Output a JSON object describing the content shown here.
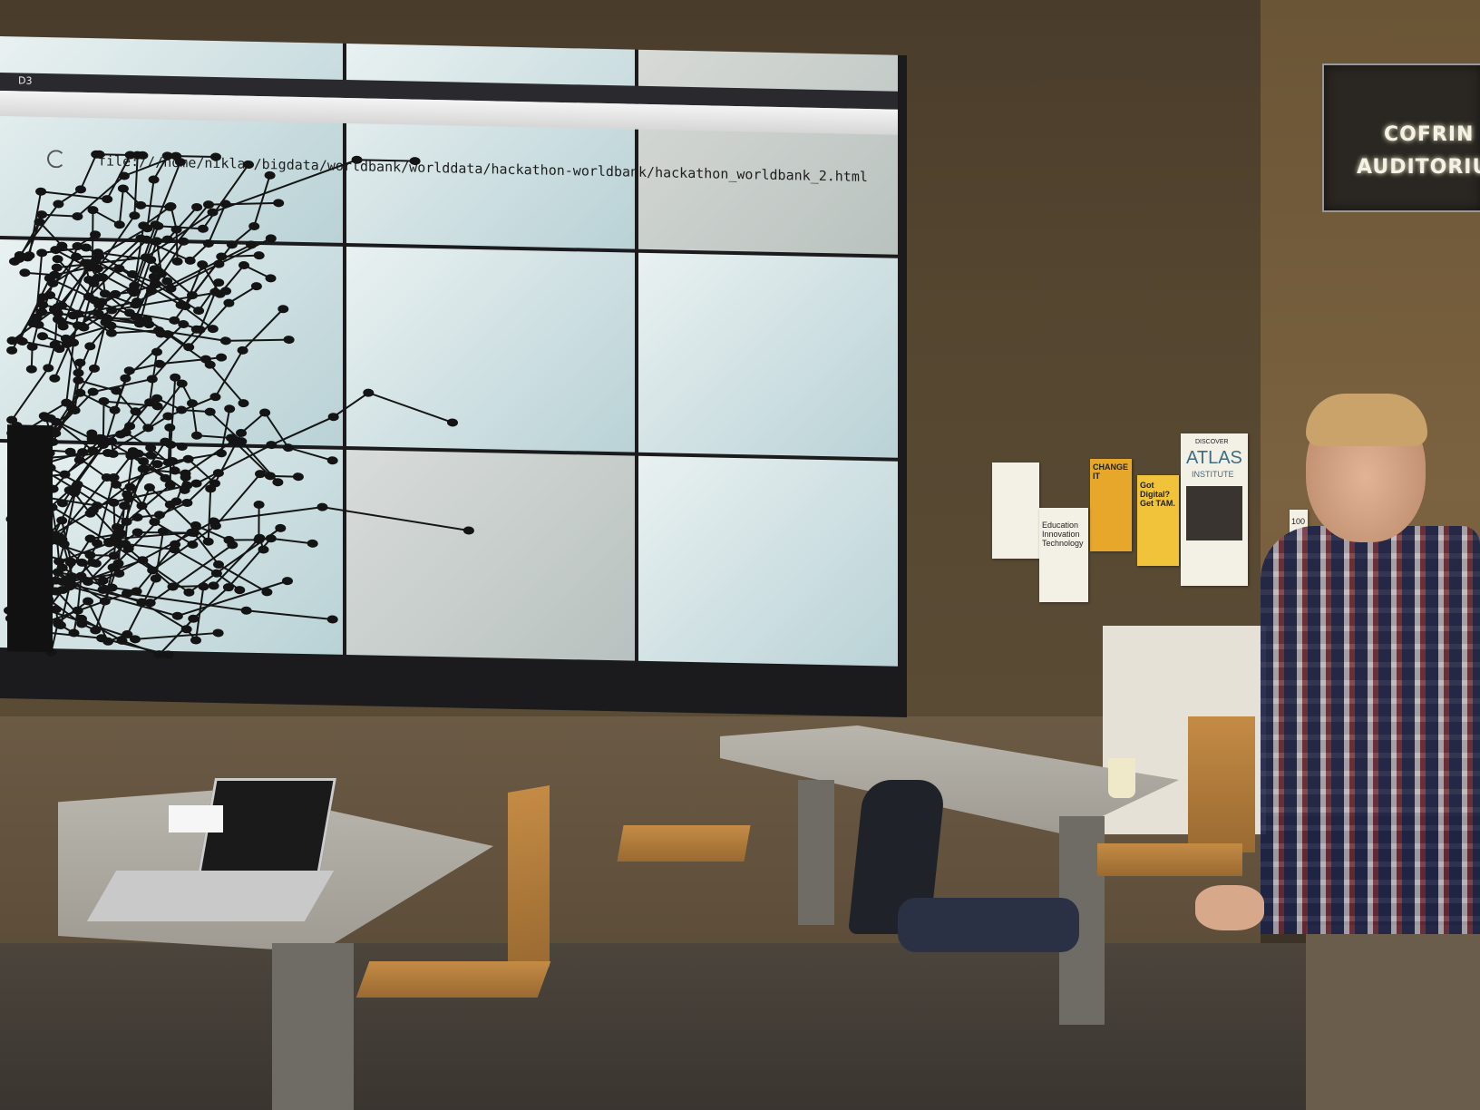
{
  "screen": {
    "browser_tab_label": "D3",
    "url": "file:///home/niklas/bigdata/worldbank/worlddata/hackathon-worldbank/hackathon_worldbank_2.html"
  },
  "sign": {
    "line1": "COFRIN",
    "line2": "AUDITORIUM"
  },
  "posters": {
    "change_it": "CHANGE IT",
    "got_digital": "Got Digital? Get TAM.",
    "education": "Education Innovation Technology",
    "atlas_top": "DISCOVER",
    "atlas_title": "ATLAS",
    "atlas_sub": "INSTITUTE"
  },
  "door_number": "100"
}
